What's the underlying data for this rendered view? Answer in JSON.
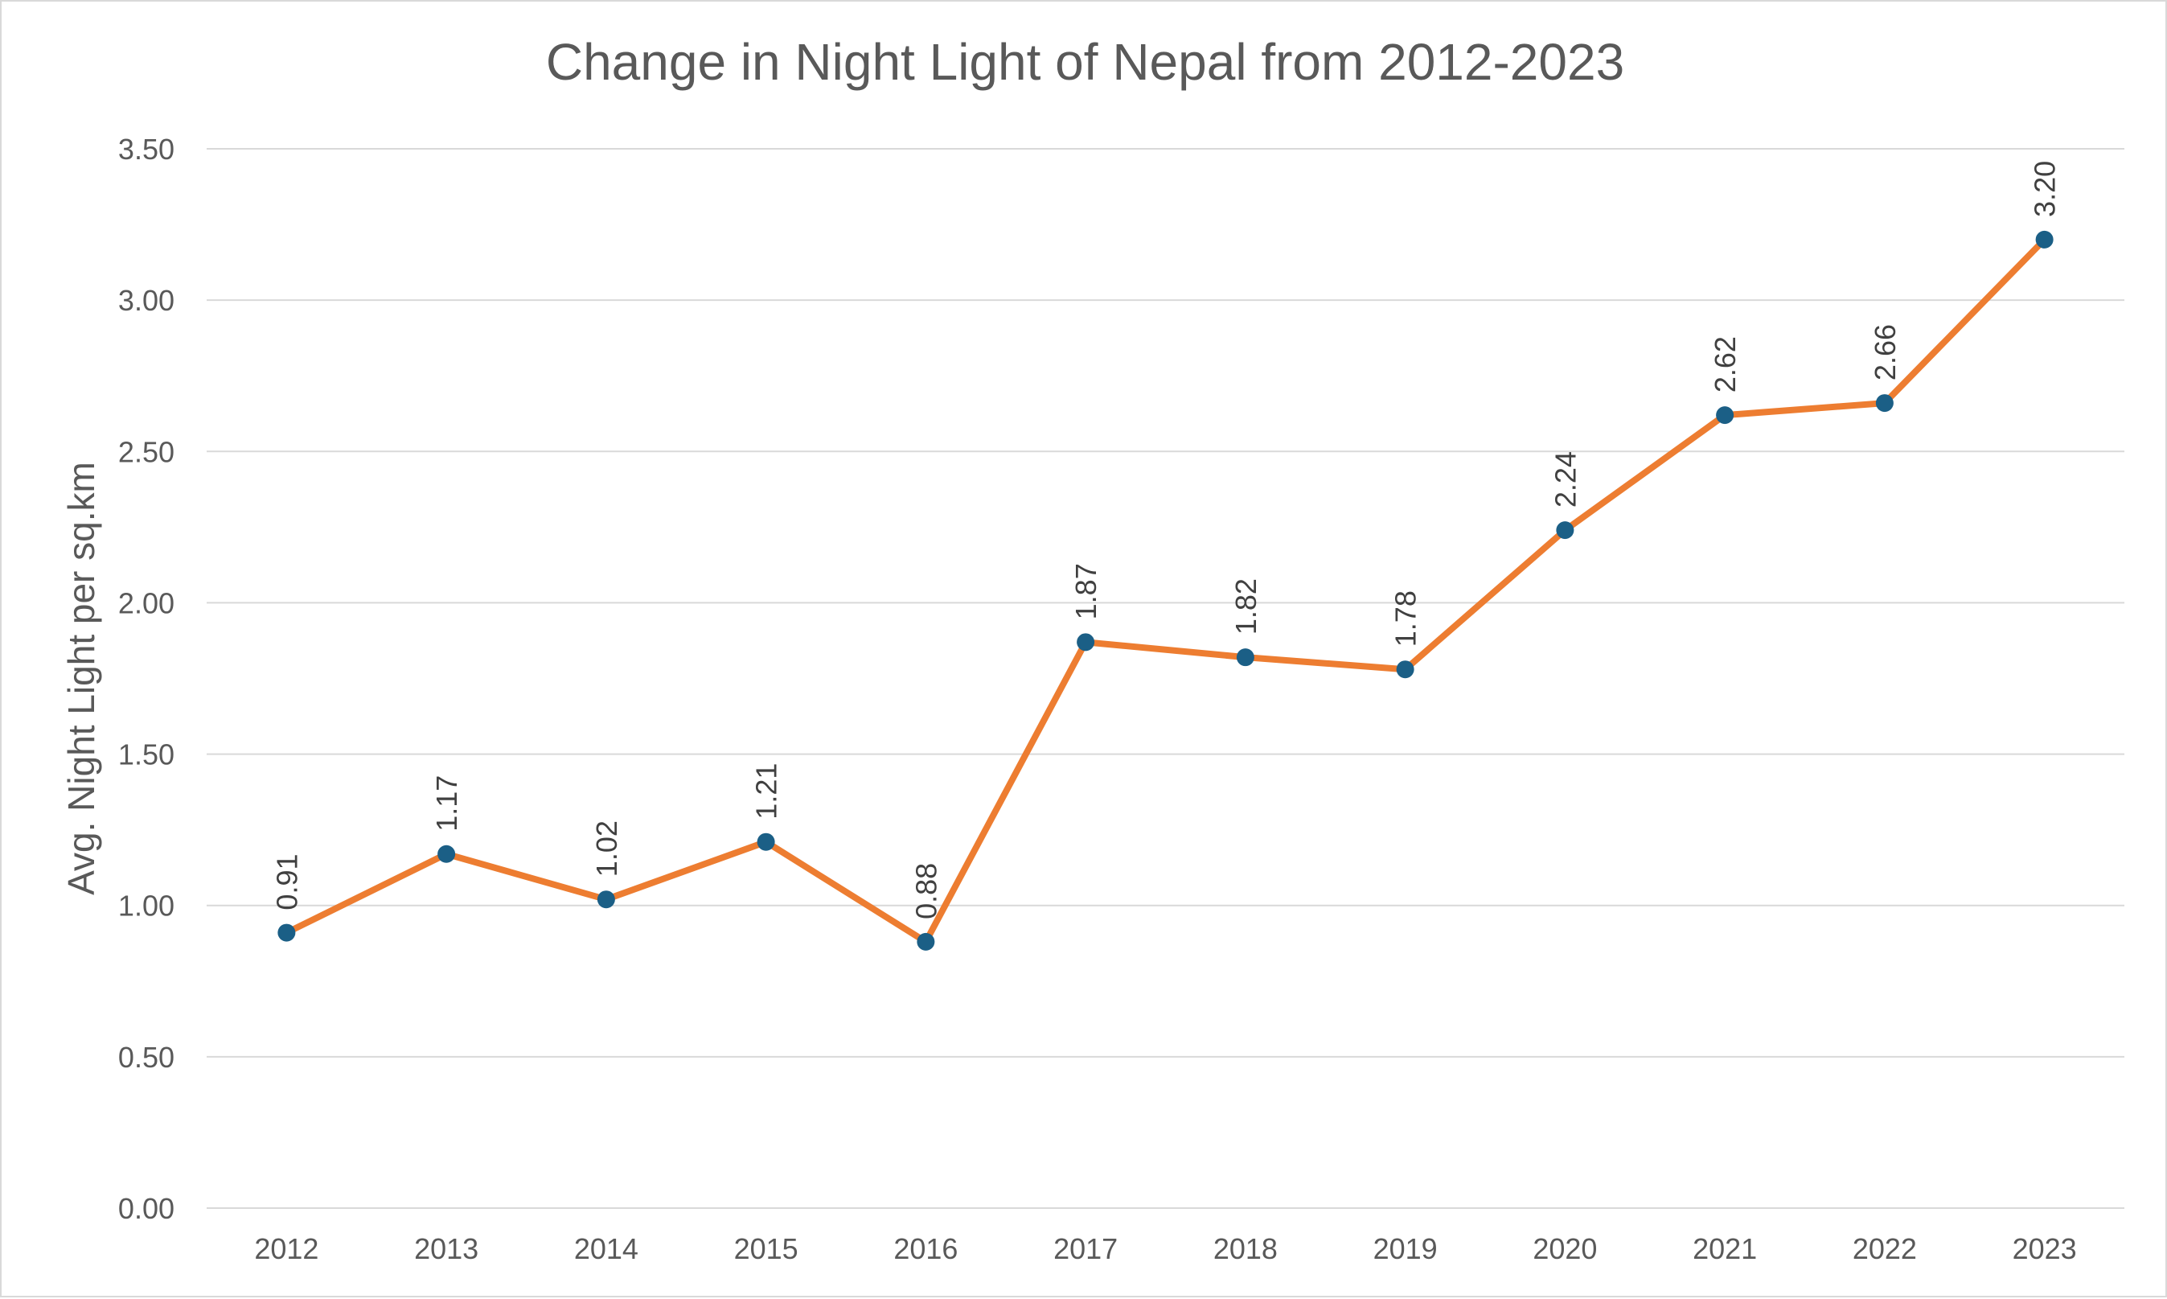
{
  "chart_data": {
    "type": "line",
    "title": "Change in Night Light of Nepal from 2012-2023",
    "xlabel": "",
    "ylabel": "Avg. Night Light per sq.km",
    "categories": [
      "2012",
      "2013",
      "2014",
      "2015",
      "2016",
      "2017",
      "2018",
      "2019",
      "2020",
      "2021",
      "2022",
      "2023"
    ],
    "values": [
      0.91,
      1.17,
      1.02,
      1.21,
      0.88,
      1.87,
      1.82,
      1.78,
      2.24,
      2.62,
      2.66,
      3.2
    ],
    "data_labels": [
      "0.91",
      "1.17",
      "1.02",
      "1.21",
      "0.88",
      "1.87",
      "1.82",
      "1.78",
      "2.24",
      "2.62",
      "2.66",
      "3.20"
    ],
    "yticks": [
      "0.00",
      "0.50",
      "1.00",
      "1.50",
      "2.00",
      "2.50",
      "3.00",
      "3.50"
    ],
    "ylim": [
      0,
      3.5
    ],
    "grid": true,
    "legend": "none",
    "line_color": "#ED7D31",
    "marker_color": "#1B5F86"
  }
}
